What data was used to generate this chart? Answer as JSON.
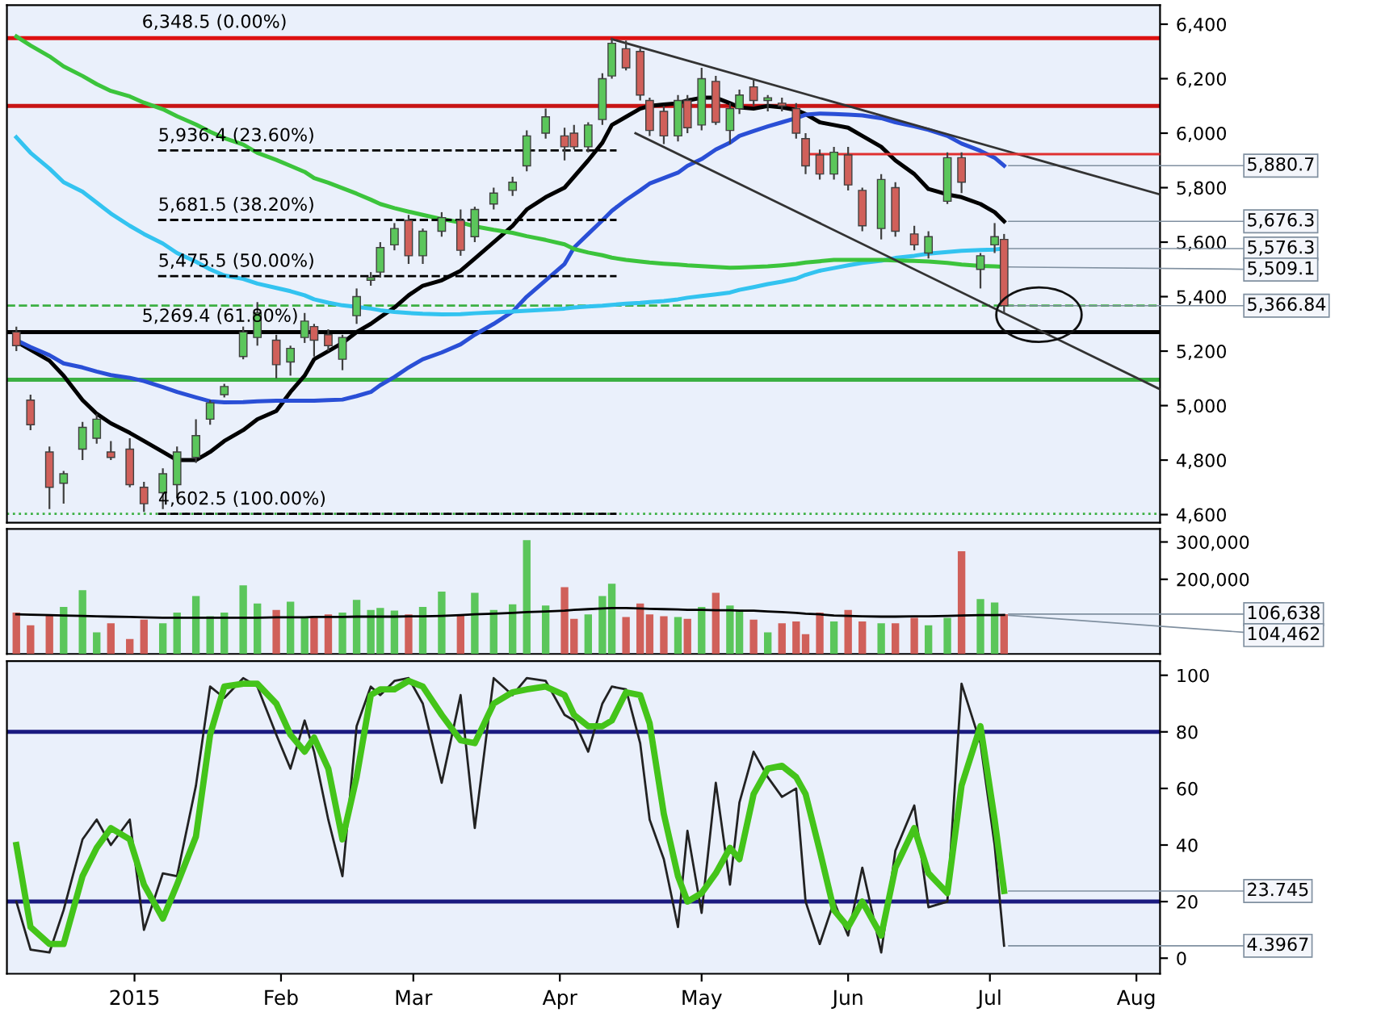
{
  "chart_data": [
    {
      "type": "candlestick",
      "x": [
        "2014-12-07",
        "2014-12-10",
        "2014-12-14",
        "2014-12-17",
        "2014-12-21",
        "2014-12-24",
        "2014-12-27",
        "2014-12-31",
        "2015-01-03",
        "2015-01-07",
        "2015-01-10",
        "2015-01-14",
        "2015-01-17",
        "2015-01-20",
        "2015-01-24",
        "2015-01-27",
        "2015-01-31",
        "2015-02-03",
        "2015-02-06",
        "2015-02-08",
        "2015-02-11",
        "2015-02-14",
        "2015-02-17",
        "2015-02-20",
        "2015-02-22",
        "2015-02-25",
        "2015-02-28",
        "2015-03-03",
        "2015-03-07",
        "2015-03-11",
        "2015-03-14",
        "2015-03-18",
        "2015-03-22",
        "2015-03-25",
        "2015-03-29",
        "2015-04-02",
        "2015-04-04",
        "2015-04-07",
        "2015-04-10",
        "2015-04-12",
        "2015-04-15",
        "2015-04-18",
        "2015-04-20",
        "2015-04-23",
        "2015-04-26",
        "2015-04-28",
        "2015-05-01",
        "2015-05-04",
        "2015-05-07",
        "2015-05-09",
        "2015-05-12",
        "2015-05-15",
        "2015-05-18",
        "2015-05-21",
        "2015-05-23",
        "2015-05-26",
        "2015-05-29",
        "2015-06-01",
        "2015-06-04",
        "2015-06-08",
        "2015-06-11",
        "2015-06-15",
        "2015-06-18",
        "2015-06-22",
        "2015-06-25",
        "2015-06-29",
        "2015-07-02",
        "2015-07-04"
      ],
      "ohlc": [
        [
          5270,
          5290,
          5200,
          5220
        ],
        [
          5020,
          5040,
          4910,
          4930
        ],
        [
          4830,
          4850,
          4620,
          4700
        ],
        [
          4715,
          4760,
          4640,
          4750
        ],
        [
          4840,
          4940,
          4800,
          4920
        ],
        [
          4880,
          4970,
          4860,
          4950
        ],
        [
          4830,
          4870,
          4800,
          4810
        ],
        [
          4840,
          4880,
          4700,
          4710
        ],
        [
          4700,
          4720,
          4610,
          4640
        ],
        [
          4680,
          4770,
          4620,
          4750
        ],
        [
          4710,
          4850,
          4660,
          4830
        ],
        [
          4810,
          4950,
          4790,
          4890
        ],
        [
          4950,
          5020,
          4930,
          5010
        ],
        [
          5040,
          5080,
          5030,
          5070
        ],
        [
          5180,
          5290,
          5170,
          5270
        ],
        [
          5250,
          5380,
          5220,
          5340
        ],
        [
          5240,
          5260,
          5100,
          5150
        ],
        [
          5160,
          5220,
          5110,
          5210
        ],
        [
          5250,
          5340,
          5230,
          5310
        ],
        [
          5290,
          5300,
          5180,
          5240
        ],
        [
          5260,
          5280,
          5200,
          5220
        ],
        [
          5170,
          5260,
          5130,
          5250
        ],
        [
          5330,
          5430,
          5300,
          5400
        ],
        [
          5460,
          5490,
          5440,
          5470
        ],
        [
          5490,
          5600,
          5470,
          5580
        ],
        [
          5590,
          5670,
          5570,
          5650
        ],
        [
          5680,
          5700,
          5520,
          5550
        ],
        [
          5550,
          5650,
          5520,
          5640
        ],
        [
          5640,
          5710,
          5620,
          5690
        ],
        [
          5680,
          5720,
          5550,
          5570
        ],
        [
          5620,
          5730,
          5600,
          5720
        ],
        [
          5740,
          5800,
          5720,
          5780
        ],
        [
          5790,
          5840,
          5770,
          5820
        ],
        [
          5880,
          6010,
          5860,
          5990
        ],
        [
          6000,
          6090,
          5980,
          6060
        ],
        [
          5990,
          6020,
          5900,
          5950
        ],
        [
          6000,
          6030,
          5940,
          5950
        ],
        [
          5950,
          6040,
          5930,
          6030
        ],
        [
          6050,
          6220,
          6030,
          6200
        ],
        [
          6210,
          6350,
          6200,
          6330
        ],
        [
          6310,
          6340,
          6230,
          6240
        ],
        [
          6300,
          6310,
          6120,
          6140
        ],
        [
          6120,
          6130,
          5990,
          6010
        ],
        [
          6080,
          6100,
          5960,
          5990
        ],
        [
          5990,
          6140,
          5970,
          6120
        ],
        [
          6120,
          6140,
          6000,
          6020
        ],
        [
          6030,
          6240,
          6010,
          6200
        ],
        [
          6190,
          6210,
          6030,
          6040
        ],
        [
          6010,
          6110,
          5960,
          6090
        ],
        [
          6090,
          6160,
          6070,
          6140
        ],
        [
          6170,
          6200,
          6100,
          6120
        ],
        [
          6120,
          6140,
          6080,
          6130
        ],
        [
          6110,
          6130,
          6080,
          6100
        ],
        [
          6090,
          6110,
          5980,
          6000
        ],
        [
          5980,
          6000,
          5850,
          5880
        ],
        [
          5920,
          5940,
          5830,
          5850
        ],
        [
          5850,
          5950,
          5830,
          5930
        ],
        [
          5920,
          5950,
          5790,
          5810
        ],
        [
          5790,
          5800,
          5640,
          5660
        ],
        [
          5650,
          5850,
          5610,
          5830
        ],
        [
          5800,
          5820,
          5620,
          5640
        ],
        [
          5630,
          5660,
          5570,
          5590
        ],
        [
          5560,
          5640,
          5540,
          5620
        ],
        [
          5750,
          5930,
          5740,
          5910
        ],
        [
          5910,
          5930,
          5780,
          5820
        ],
        [
          5500,
          5560,
          5430,
          5550
        ],
        [
          5590,
          5670,
          5560,
          5620
        ],
        [
          5610,
          5630,
          5340,
          5366.84
        ]
      ],
      "colors": [
        "#d0605a",
        "#d0605a",
        "#d0605a",
        "#5bc65b",
        "#5bc65b",
        "#5bc65b",
        "#d0605a",
        "#d0605a",
        "#d0605a",
        "#5bc65b",
        "#5bc65b",
        "#5bc65b",
        "#5bc65b",
        "#5bc65b",
        "#5bc65b",
        "#5bc65b",
        "#d0605a",
        "#5bc65b",
        "#5bc65b",
        "#d0605a",
        "#d0605a",
        "#5bc65b",
        "#5bc65b",
        "#5bc65b",
        "#5bc65b",
        "#5bc65b",
        "#d0605a",
        "#5bc65b",
        "#5bc65b",
        "#d0605a",
        "#5bc65b",
        "#5bc65b",
        "#5bc65b",
        "#5bc65b",
        "#5bc65b",
        "#d0605a",
        "#d0605a",
        "#5bc65b",
        "#5bc65b",
        "#5bc65b",
        "#d0605a",
        "#d0605a",
        "#d0605a",
        "#d0605a",
        "#5bc65b",
        "#d0605a",
        "#5bc65b",
        "#d0605a",
        "#5bc65b",
        "#5bc65b",
        "#d0605a",
        "#5bc65b",
        "#d0605a",
        "#d0605a",
        "#d0605a",
        "#d0605a",
        "#5bc65b",
        "#d0605a",
        "#d0605a",
        "#5bc65b",
        "#d0605a",
        "#d0605a",
        "#5bc65b",
        "#5bc65b",
        "#d0605a",
        "#5bc65b",
        "#5bc65b",
        "#d0605a"
      ],
      "series": [
        {
          "type": "line",
          "color": "#000000",
          "values": [
            5235,
            5205,
            5165,
            5110,
            5020,
            4970,
            4935,
            4900,
            4870,
            4830,
            4800,
            4800,
            4830,
            4870,
            4910,
            4950,
            4980,
            5050,
            5110,
            5170,
            5200,
            5230,
            5270,
            5300,
            5325,
            5360,
            5405,
            5440,
            5460,
            5495,
            5540,
            5600,
            5660,
            5720,
            5765,
            5800,
            5840,
            5900,
            5965,
            6030,
            6060,
            6090,
            6100,
            6105,
            6110,
            6120,
            6130,
            6130,
            6110,
            6095,
            6090,
            6100,
            6095,
            6085,
            6070,
            6040,
            6030,
            6020,
            5990,
            5950,
            5900,
            5850,
            5795,
            5775,
            5765,
            5740,
            5710,
            5676.3
          ]
        },
        {
          "type": "line",
          "color": "#2a4fd6",
          "values": [
            5240,
            5215,
            5185,
            5155,
            5140,
            5125,
            5112,
            5102,
            5090,
            5068,
            5050,
            5030,
            5016,
            5012,
            5013,
            5016,
            5018,
            5018,
            5018,
            5018,
            5020,
            5022,
            5035,
            5050,
            5075,
            5105,
            5140,
            5170,
            5195,
            5225,
            5260,
            5300,
            5345,
            5400,
            5460,
            5520,
            5580,
            5630,
            5680,
            5715,
            5755,
            5790,
            5815,
            5835,
            5855,
            5880,
            5905,
            5940,
            5965,
            5990,
            6008,
            6025,
            6040,
            6055,
            6068,
            6072,
            6070,
            6068,
            6065,
            6055,
            6040,
            6025,
            6012,
            5990,
            5962,
            5935,
            5910,
            5880.7
          ]
        },
        {
          "type": "line",
          "color": "#33c3f0",
          "values": [
            5985,
            5928,
            5870,
            5820,
            5785,
            5745,
            5705,
            5660,
            5630,
            5595,
            5560,
            5528,
            5500,
            5478,
            5465,
            5448,
            5432,
            5420,
            5405,
            5390,
            5378,
            5368,
            5362,
            5356,
            5350,
            5344,
            5340,
            5337,
            5335,
            5336,
            5339,
            5342,
            5345,
            5348,
            5352,
            5356,
            5360,
            5364,
            5367,
            5370,
            5374,
            5377,
            5380,
            5384,
            5390,
            5396,
            5402,
            5408,
            5415,
            5425,
            5435,
            5446,
            5455,
            5466,
            5480,
            5495,
            5505,
            5515,
            5524,
            5532,
            5542,
            5550,
            5558,
            5564,
            5568,
            5571,
            5573,
            5576.3
          ]
        },
        {
          "type": "line",
          "color": "#3cc43c",
          "values": [
            6355,
            6322,
            6282,
            6245,
            6210,
            6180,
            6155,
            6135,
            6112,
            6088,
            6062,
            6032,
            6005,
            5982,
            5958,
            5928,
            5902,
            5880,
            5858,
            5835,
            5818,
            5798,
            5778,
            5756,
            5740,
            5725,
            5712,
            5700,
            5685,
            5672,
            5658,
            5645,
            5634,
            5622,
            5608,
            5592,
            5575,
            5562,
            5552,
            5543,
            5535,
            5529,
            5525,
            5521,
            5518,
            5515,
            5512,
            5509,
            5506,
            5507,
            5509,
            5511,
            5515,
            5520,
            5525,
            5530,
            5535,
            5535,
            5535,
            5535,
            5533,
            5531,
            5529,
            5524,
            5518,
            5513,
            5511,
            5509.1
          ]
        },
        {
          "type": "line",
          "color": "#333333",
          "x": [
            "2015-04-12",
            "2015-08-06"
          ],
          "values": [
            6345,
            5775
          ]
        },
        {
          "type": "line",
          "color": "#333333",
          "x": [
            "2015-04-17",
            "2015-08-06"
          ],
          "values": [
            6000,
            5060
          ]
        },
        {
          "type": "line",
          "color": "#e03030",
          "x": [
            "2015-05-23",
            "2015-08-06"
          ],
          "values": [
            5923,
            5923
          ]
        },
        {
          "type": "line",
          "name": "5,936.4 (23.60%)",
          "color": "#000000",
          "line_style": "dashed",
          "x": [
            "2015-01-06",
            "2015-04-13"
          ],
          "values": [
            5936.4,
            5936.4
          ]
        },
        {
          "type": "line",
          "name": "5,681.5 (38.20%)",
          "color": "#000000",
          "line_style": "dashed",
          "x": [
            "2015-01-06",
            "2015-04-13"
          ],
          "values": [
            5681.5,
            5681.5
          ]
        },
        {
          "type": "line",
          "name": "5,475.5 (50.00%)",
          "color": "#000000",
          "line_style": "dashed",
          "x": [
            "2015-01-06",
            "2015-04-13"
          ],
          "values": [
            5475.5,
            5475.5
          ]
        },
        {
          "type": "line",
          "name": "4,602.5 (100.00%)",
          "color": "#000000",
          "line_style": "dashed",
          "x": [
            "2015-01-06",
            "2015-04-13"
          ],
          "values": [
            4602.5,
            4602.5
          ]
        }
      ],
      "ref_lines": [
        {
          "axis": "y",
          "value": 6348.5,
          "label": "6,348.5 (0.00%)",
          "color": "#dd1111"
        },
        {
          "axis": "y",
          "value": 6100,
          "color": "#c81414"
        },
        {
          "axis": "y",
          "value": 5269.4,
          "label": "5,269.4 (61.80%)",
          "color": "#000000"
        },
        {
          "axis": "y",
          "value": 5366.84,
          "color": "#3cb043",
          "line_style": "dashed"
        },
        {
          "axis": "y",
          "value": 5095,
          "color": "#3cb043"
        },
        {
          "axis": "y",
          "value": 4602.5,
          "color": "#3cb043",
          "line_style": "dotted"
        }
      ],
      "annotations": [
        {
          "text": "5,880.7",
          "x": "2015-07-04",
          "y": 5880.7
        },
        {
          "text": "5,676.3",
          "x": "2015-07-04",
          "y": 5676.3
        },
        {
          "text": "5,576.3",
          "x": "2015-07-04",
          "y": 5576.3
        },
        {
          "text": "5,509.1",
          "x": "2015-07-04",
          "y": 5509.1
        },
        {
          "text": "5,366.84",
          "x": "2015-07-04",
          "y": 5366.84
        }
      ],
      "xlim": [
        "2014-12-05",
        "2015-08-06"
      ],
      "ylim": [
        4570,
        6470
      ],
      "yticks": [
        {
          "value": 4600,
          "label": "4,600"
        },
        {
          "value": 4800,
          "label": "4,800"
        },
        {
          "value": 5000,
          "label": "5,000"
        },
        {
          "value": 5200,
          "label": "5,200"
        },
        {
          "value": 5400,
          "label": "5,400"
        },
        {
          "value": 5600,
          "label": "5,600"
        },
        {
          "value": 5800,
          "label": "5,800"
        },
        {
          "value": 6000,
          "label": "6,000"
        },
        {
          "value": 6200,
          "label": "6,200"
        },
        {
          "value": 6400,
          "label": "6,400"
        }
      ],
      "tick_labels": "y"
    },
    {
      "type": "bar",
      "x": [
        "2014-12-07",
        "2014-12-10",
        "2014-12-14",
        "2014-12-17",
        "2014-12-21",
        "2014-12-24",
        "2014-12-27",
        "2014-12-31",
        "2015-01-03",
        "2015-01-07",
        "2015-01-10",
        "2015-01-14",
        "2015-01-17",
        "2015-01-20",
        "2015-01-24",
        "2015-01-27",
        "2015-01-31",
        "2015-02-03",
        "2015-02-06",
        "2015-02-08",
        "2015-02-11",
        "2015-02-14",
        "2015-02-17",
        "2015-02-20",
        "2015-02-22",
        "2015-02-25",
        "2015-02-28",
        "2015-03-03",
        "2015-03-07",
        "2015-03-11",
        "2015-03-14",
        "2015-03-18",
        "2015-03-22",
        "2015-03-25",
        "2015-03-29",
        "2015-04-02",
        "2015-04-04",
        "2015-04-07",
        "2015-04-10",
        "2015-04-12",
        "2015-04-15",
        "2015-04-18",
        "2015-04-20",
        "2015-04-23",
        "2015-04-26",
        "2015-04-28",
        "2015-05-01",
        "2015-05-04",
        "2015-05-07",
        "2015-05-09",
        "2015-05-12",
        "2015-05-15",
        "2015-05-18",
        "2015-05-21",
        "2015-05-23",
        "2015-05-26",
        "2015-05-29",
        "2015-06-01",
        "2015-06-04",
        "2015-06-08",
        "2015-06-11",
        "2015-06-15",
        "2015-06-18",
        "2015-06-22",
        "2015-06-25",
        "2015-06-29",
        "2015-07-02",
        "2015-07-04"
      ],
      "series": [
        {
          "type": "bar",
          "values": [
            111000,
            77000,
            106000,
            126000,
            171000,
            58000,
            82000,
            40000,
            92000,
            82000,
            111000,
            155000,
            101000,
            111000,
            184000,
            135000,
            118000,
            140000,
            99000,
            101000,
            106000,
            111000,
            145000,
            118000,
            123000,
            116000,
            106000,
            126000,
            167000,
            106000,
            164000,
            118000,
            133000,
            305000,
            130000,
            179000,
            94000,
            106000,
            155000,
            188000,
            99000,
            135000,
            106000,
            101000,
            99000,
            94000,
            126000,
            164000,
            130000,
            118000,
            92000,
            58000,
            82000,
            87000,
            53000,
            111000,
            87000,
            118000,
            87000,
            82000,
            82000,
            97000,
            77000,
            97000,
            275000,
            147000,
            138000,
            106638
          ],
          "colors": [
            "#d0605a",
            "#d0605a",
            "#d0605a",
            "#5bc65b",
            "#5bc65b",
            "#5bc65b",
            "#d0605a",
            "#d0605a",
            "#d0605a",
            "#5bc65b",
            "#5bc65b",
            "#5bc65b",
            "#5bc65b",
            "#5bc65b",
            "#5bc65b",
            "#5bc65b",
            "#d0605a",
            "#5bc65b",
            "#5bc65b",
            "#d0605a",
            "#d0605a",
            "#5bc65b",
            "#5bc65b",
            "#5bc65b",
            "#5bc65b",
            "#5bc65b",
            "#d0605a",
            "#5bc65b",
            "#5bc65b",
            "#d0605a",
            "#5bc65b",
            "#5bc65b",
            "#5bc65b",
            "#5bc65b",
            "#5bc65b",
            "#d0605a",
            "#d0605a",
            "#5bc65b",
            "#5bc65b",
            "#5bc65b",
            "#d0605a",
            "#d0605a",
            "#d0605a",
            "#d0605a",
            "#5bc65b",
            "#d0605a",
            "#5bc65b",
            "#d0605a",
            "#5bc65b",
            "#5bc65b",
            "#d0605a",
            "#5bc65b",
            "#d0605a",
            "#d0605a",
            "#d0605a",
            "#d0605a",
            "#5bc65b",
            "#d0605a",
            "#d0605a",
            "#5bc65b",
            "#d0605a",
            "#d0605a",
            "#5bc65b",
            "#5bc65b",
            "#d0605a",
            "#5bc65b",
            "#5bc65b",
            "#d0605a"
          ]
        },
        {
          "type": "line",
          "color": "#000000",
          "values": [
            106000,
            105000,
            104000,
            103000,
            102000,
            101000,
            100000,
            99000,
            98000,
            97000,
            97000,
            97000,
            97000,
            97000,
            97000,
            97000,
            98000,
            98000,
            98000,
            99000,
            99000,
            99000,
            100000,
            100000,
            100000,
            100000,
            101000,
            101000,
            102000,
            104000,
            106000,
            108000,
            110000,
            112000,
            114000,
            116000,
            118000,
            120000,
            122000,
            123000,
            123000,
            122000,
            121000,
            120000,
            119000,
            118000,
            118000,
            117000,
            117000,
            116000,
            116000,
            114000,
            112000,
            110000,
            108000,
            106000,
            103000,
            102000,
            101000,
            100000,
            100000,
            101000,
            101000,
            102000,
            103000,
            104000,
            104000,
            104462
          ]
        }
      ],
      "annotations": [
        {
          "text": "106,638",
          "x": "2015-07-04",
          "y": 106638
        },
        {
          "text": "104,462",
          "x": "2015-07-04",
          "y": 104462
        }
      ],
      "xlim": [
        "2014-12-05",
        "2015-08-06"
      ],
      "ylim": [
        0,
        335000
      ],
      "yticks": [
        {
          "value": 200000,
          "label": "200,000"
        },
        {
          "value": 300000,
          "label": "300,000"
        }
      ],
      "tick_labels": "y"
    },
    {
      "type": "line",
      "x": [
        "2014-12-07",
        "2014-12-10",
        "2014-12-14",
        "2014-12-17",
        "2014-12-21",
        "2014-12-24",
        "2014-12-27",
        "2014-12-31",
        "2015-01-03",
        "2015-01-07",
        "2015-01-10",
        "2015-01-14",
        "2015-01-17",
        "2015-01-20",
        "2015-01-24",
        "2015-01-27",
        "2015-01-31",
        "2015-02-03",
        "2015-02-06",
        "2015-02-08",
        "2015-02-11",
        "2015-02-14",
        "2015-02-17",
        "2015-02-20",
        "2015-02-22",
        "2015-02-25",
        "2015-02-28",
        "2015-03-03",
        "2015-03-07",
        "2015-03-11",
        "2015-03-14",
        "2015-03-18",
        "2015-03-22",
        "2015-03-25",
        "2015-03-29",
        "2015-04-02",
        "2015-04-04",
        "2015-04-07",
        "2015-04-10",
        "2015-04-12",
        "2015-04-15",
        "2015-04-18",
        "2015-04-20",
        "2015-04-23",
        "2015-04-26",
        "2015-04-28",
        "2015-05-01",
        "2015-05-04",
        "2015-05-07",
        "2015-05-09",
        "2015-05-12",
        "2015-05-15",
        "2015-05-18",
        "2015-05-21",
        "2015-05-23",
        "2015-05-26",
        "2015-05-29",
        "2015-06-01",
        "2015-06-04",
        "2015-06-08",
        "2015-06-11",
        "2015-06-15",
        "2015-06-18",
        "2015-06-22",
        "2015-06-25",
        "2015-06-29",
        "2015-07-02",
        "2015-07-04"
      ],
      "series": [
        {
          "color": "#222222",
          "values": [
            20,
            3,
            2,
            17,
            42,
            49,
            40,
            49,
            10,
            30,
            29,
            61,
            96,
            92,
            99,
            96,
            79,
            67,
            84,
            73,
            49,
            29,
            82,
            96,
            93,
            98,
            99,
            90,
            62,
            93,
            46,
            99,
            93,
            99,
            98,
            86,
            84,
            73,
            90,
            96,
            95,
            76,
            49,
            35,
            11,
            45,
            16,
            62,
            26,
            55,
            73,
            64,
            57,
            60,
            20,
            5,
            20,
            8,
            32,
            2,
            38,
            54,
            18,
            20,
            97,
            76,
            40,
            4.3967
          ]
        },
        {
          "color": "#44c41a",
          "values": [
            40,
            11,
            5,
            5,
            29,
            39,
            46,
            42,
            26,
            14,
            26,
            43,
            79,
            96,
            97,
            97,
            90,
            79,
            73,
            78,
            67,
            42,
            64,
            93,
            95,
            95,
            98,
            96,
            86,
            77,
            76,
            90,
            94,
            95,
            96,
            93,
            86,
            82,
            82,
            84,
            94,
            93,
            83,
            51,
            29,
            20,
            23,
            30,
            39,
            35,
            58,
            67,
            68,
            64,
            58,
            38,
            17,
            11,
            20,
            8,
            32,
            46,
            30,
            23,
            61,
            82,
            49,
            23.745
          ]
        }
      ],
      "ref_lines": [
        {
          "axis": "y",
          "value": 80,
          "color": "#1a1a80"
        },
        {
          "axis": "y",
          "value": 20,
          "color": "#1a1a80"
        }
      ],
      "annotations": [
        {
          "text": "23.745",
          "x": "2015-07-04",
          "y": 23.745
        },
        {
          "text": "4.3967",
          "x": "2015-07-04",
          "y": 4.3967
        }
      ],
      "xlim": [
        "2014-12-05",
        "2015-08-06"
      ],
      "ylim": [
        -5.5,
        105
      ],
      "xticks": [
        {
          "value": "2015-01-01",
          "label": "2015"
        },
        {
          "value": "2015-02-01",
          "label": "Feb"
        },
        {
          "value": "2015-03-01",
          "label": "Mar"
        },
        {
          "value": "2015-04-01",
          "label": "Apr"
        },
        {
          "value": "2015-05-01",
          "label": "May"
        },
        {
          "value": "2015-06-01",
          "label": "Jun"
        },
        {
          "value": "2015-07-01",
          "label": "Jul"
        },
        {
          "value": "2015-08-01",
          "label": "Aug"
        }
      ],
      "yticks": [
        0,
        20,
        40,
        60,
        80,
        100
      ]
    }
  ]
}
